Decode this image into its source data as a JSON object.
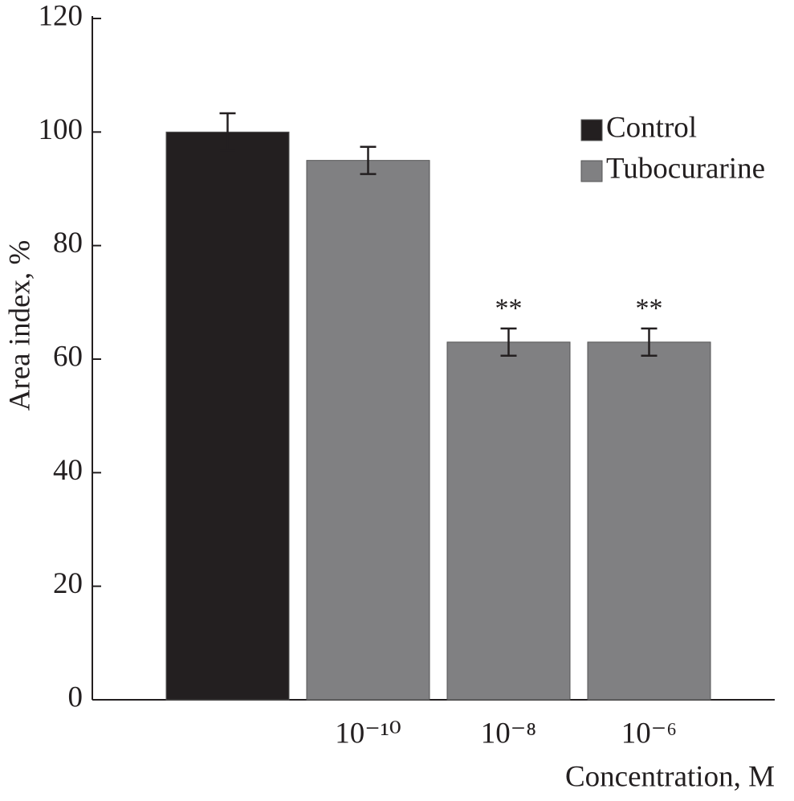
{
  "chart_data": {
    "type": "bar",
    "xlabel": "Concentration, M",
    "ylabel": "Area index, %",
    "categories": [
      null,
      "10⁻¹⁰",
      "10⁻⁸",
      "10⁻⁶"
    ],
    "series": [
      {
        "name": "Control",
        "color": "#231f20",
        "values": [
          100,
          null,
          null,
          null
        ],
        "errors": [
          3.3,
          null,
          null,
          null
        ]
      },
      {
        "name": "Tubocurarine",
        "color": "#808082",
        "values": [
          null,
          95,
          63,
          63
        ],
        "errors": [
          null,
          2.4,
          2.4,
          2.4
        ]
      }
    ],
    "significance": [
      null,
      null,
      "**",
      "**"
    ],
    "ylim": [
      0,
      120
    ],
    "yticks": [
      0,
      20,
      40,
      60,
      80,
      100,
      120
    ],
    "grid": false,
    "legend": "upper right"
  }
}
